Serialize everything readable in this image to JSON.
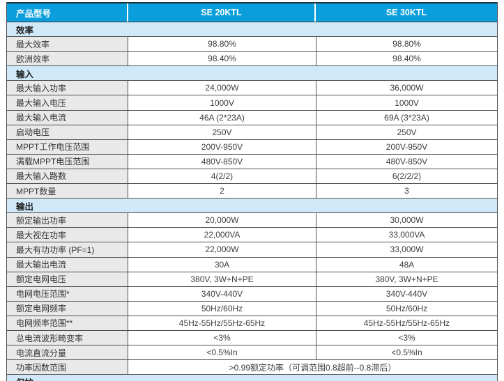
{
  "colors": {
    "header_blue": "#0a9edc",
    "section_light_blue": "#cfe9f8",
    "label_gray": "#e9e9e9",
    "border_dark": "#4f4f4f",
    "header_text": "#ffffff"
  },
  "table": {
    "header": {
      "col1": "产品型号",
      "col2": "SE 20KTL",
      "col3": "SE 30KTL"
    },
    "rows": [
      {
        "type": "section",
        "label": "效率"
      },
      {
        "type": "data",
        "label": "最大效率",
        "v1": "98.80%",
        "v2": "98.80%"
      },
      {
        "type": "data",
        "label": "欧洲效率",
        "v1": "98.40%",
        "v2": "98.40%"
      },
      {
        "type": "section",
        "label": "输入"
      },
      {
        "type": "data",
        "label": "最大输入功率",
        "v1": "24,000W",
        "v2": "36,000W"
      },
      {
        "type": "data",
        "label": "最大输入电压",
        "v1": "1000V",
        "v2": "1000V"
      },
      {
        "type": "data",
        "label": "最大输入电流",
        "v1": "46A (2*23A)",
        "v2": "69A (3*23A)"
      },
      {
        "type": "data",
        "label": "启动电压",
        "v1": "250V",
        "v2": "250V"
      },
      {
        "type": "data",
        "label": "MPPT工作电压范围",
        "v1": "200V-950V",
        "v2": "200V-950V"
      },
      {
        "type": "data",
        "label": "满载MPPT电压范围",
        "v1": "480V-850V",
        "v2": "480V-850V"
      },
      {
        "type": "data",
        "label": "最大输入路数",
        "v1": "4(2/2)",
        "v2": "6(2/2/2)"
      },
      {
        "type": "data",
        "label": "MPPT数量",
        "v1": "2",
        "v2": "3"
      },
      {
        "type": "section",
        "label": "输出"
      },
      {
        "type": "data",
        "label": "额定输出功率",
        "v1": "20,000W",
        "v2": "30,000W"
      },
      {
        "type": "data",
        "label": "最大视在功率",
        "v1": "22,000VA",
        "v2": "33,000VA"
      },
      {
        "type": "data",
        "label": "最大有功功率 (PF=1)",
        "v1": "22,000W",
        "v2": "33,000W"
      },
      {
        "type": "data",
        "label": "最大输出电流",
        "v1": "30A",
        "v2": "48A"
      },
      {
        "type": "data",
        "label": "额定电网电压",
        "v1": "380V, 3W+N+PE",
        "v2": "380V, 3W+N+PE"
      },
      {
        "type": "data",
        "label": "电网电压范围*",
        "v1": "340V-440V",
        "v2": "340V-440V"
      },
      {
        "type": "data",
        "label": "额定电网频率",
        "v1": "50Hz/60Hz",
        "v2": "50Hz/60Hz"
      },
      {
        "type": "data",
        "label": "电网频率范围**",
        "v1": "45Hz-55Hz/55Hz-65Hz",
        "v2": "45Hz-55Hz/55Hz-65Hz"
      },
      {
        "type": "data",
        "label": "总电流波形畸变率",
        "v1": "<3%",
        "v2": "<3%"
      },
      {
        "type": "data",
        "label": "电流直流分量",
        "v1": "<0.5%In",
        "v2": "<0.5%In"
      },
      {
        "type": "data-span",
        "label": "功率因数范围",
        "span": ">0.99额定功率（可调范围0.8超前--0.8滞后）"
      },
      {
        "type": "section-partial",
        "label": "保护"
      }
    ]
  }
}
